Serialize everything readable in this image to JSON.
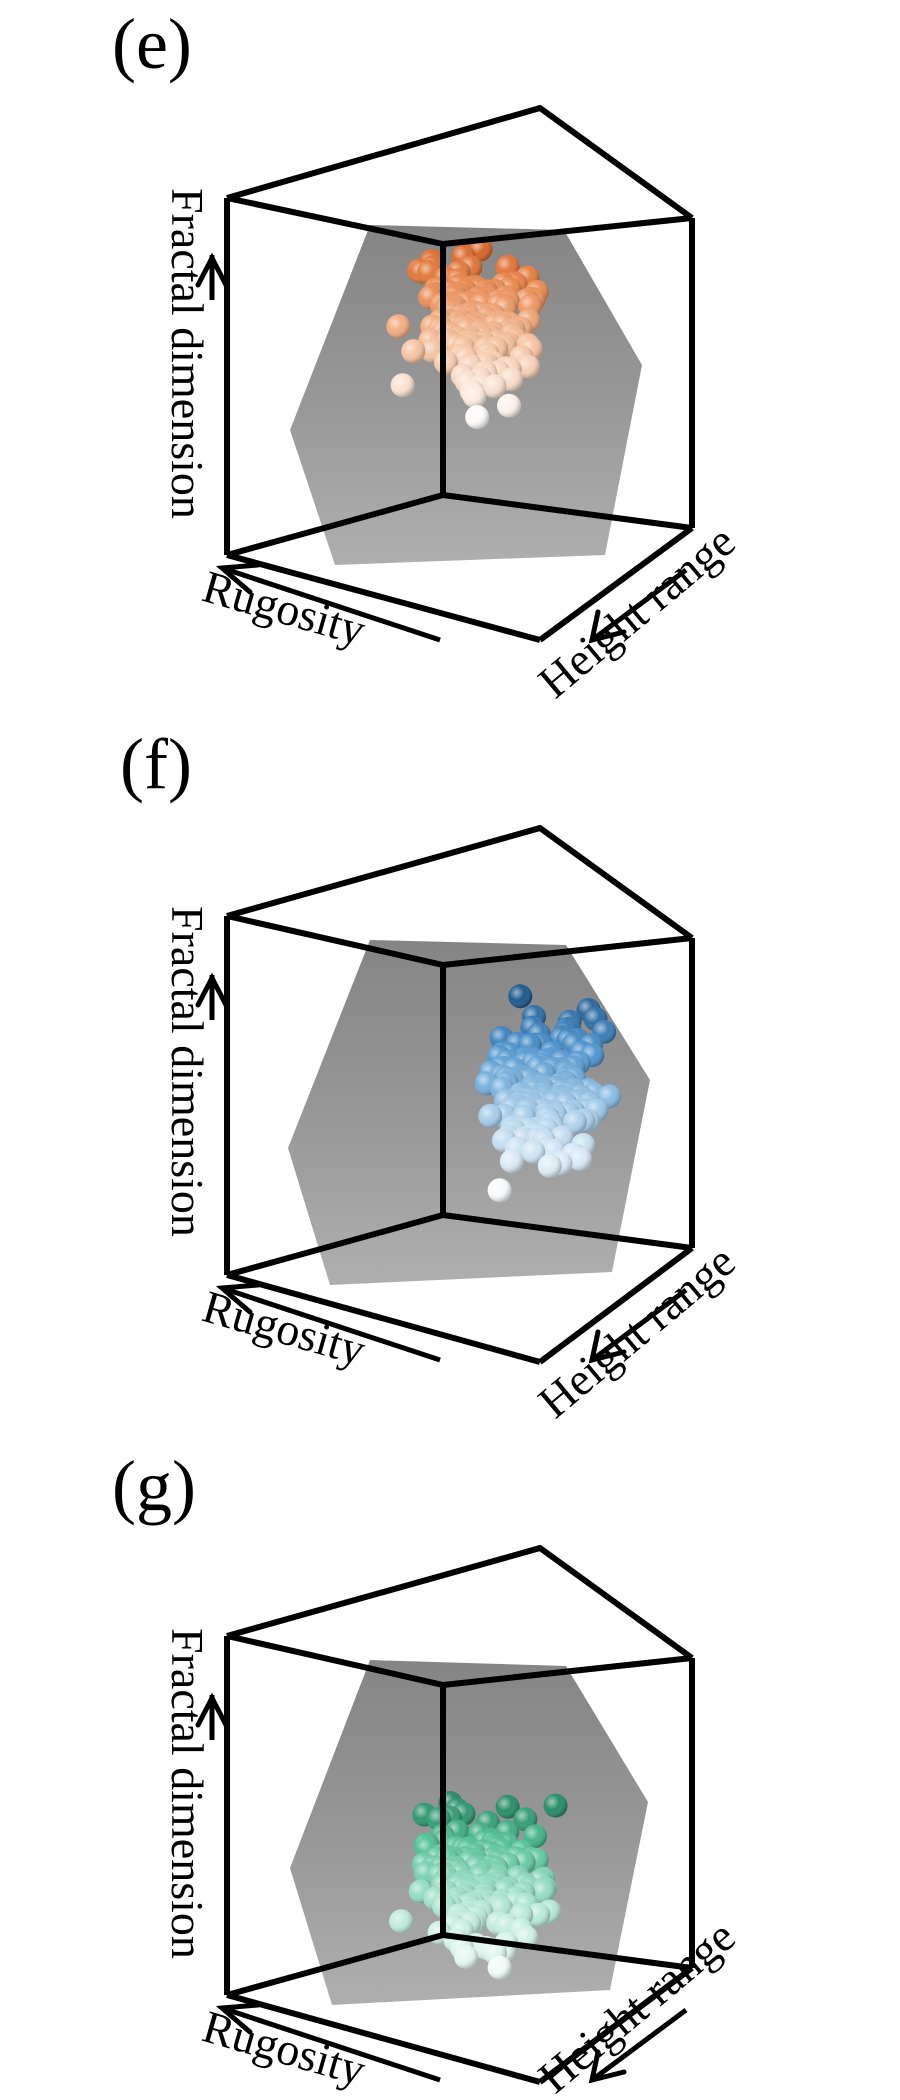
{
  "chart_data": [
    {
      "type": "scatter",
      "panel_label": "(e)",
      "title": "",
      "xlabel": "Rugosity",
      "ylabel": "Height range",
      "zlabel": "Fractal dimension",
      "colormap": [
        "#ffffff",
        "#f6c7a7",
        "#e9854a",
        "#c84d0c"
      ],
      "points": []
    },
    {
      "type": "scatter",
      "panel_label": "(f)",
      "title": "",
      "xlabel": "Rugosity",
      "ylabel": "Height range",
      "zlabel": "Fractal dimension",
      "colormap": [
        "#ffffff",
        "#b6d6ee",
        "#4e95cf",
        "#134a7d"
      ],
      "points": []
    },
    {
      "type": "scatter",
      "panel_label": "(g)",
      "title": "",
      "xlabel": "Rugosity",
      "ylabel": "Height range",
      "zlabel": "Fractal dimension",
      "colormap": [
        "#ffffff",
        "#b9ead9",
        "#4fbf96",
        "#0f6b4a"
      ],
      "points": []
    }
  ]
}
